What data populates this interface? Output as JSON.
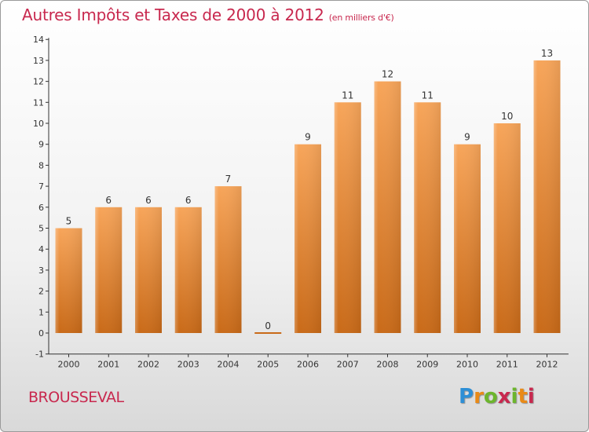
{
  "chart_data": {
    "type": "bar",
    "title": "Autres Impôts et Taxes de 2000 à 2012",
    "unit": "(en milliers d'€)",
    "categories": [
      "2000",
      "2001",
      "2002",
      "2003",
      "2004",
      "2005",
      "2006",
      "2007",
      "2008",
      "2009",
      "2010",
      "2011",
      "2012"
    ],
    "values": [
      5,
      6,
      6,
      6,
      7,
      0,
      9,
      11,
      12,
      11,
      9,
      10,
      13
    ],
    "data_labels": [
      "5",
      "6",
      "6",
      "6",
      "7",
      "0",
      "9",
      "11",
      "12",
      "11",
      "9",
      "10",
      "13"
    ],
    "yticks": [
      "-1",
      "0",
      "1",
      "2",
      "3",
      "4",
      "5",
      "6",
      "7",
      "8",
      "9",
      "10",
      "11",
      "12",
      "13",
      "14"
    ],
    "ylim": [
      -1,
      14
    ],
    "grid": false,
    "colors": {
      "bar_top": "#f7a55a",
      "bar_bottom": "#c96a18",
      "text": "#c8284e",
      "axis": "#333333"
    }
  },
  "place_name": "BROUSSEVAL",
  "logo": {
    "text": "Proxiti",
    "colors": [
      "#2d8fd6",
      "#e98a17",
      "#6cb52d",
      "#c8284e"
    ]
  }
}
